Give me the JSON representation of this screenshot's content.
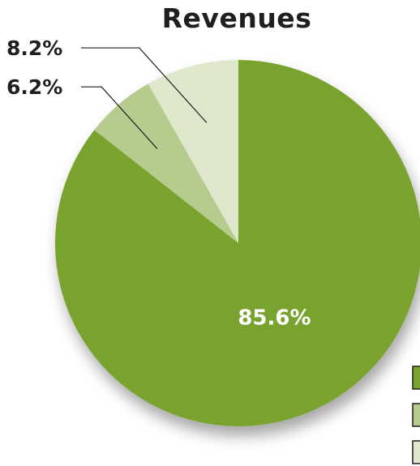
{
  "chart_data": {
    "type": "pie",
    "title": "Revenues",
    "start_angle_deg": 0,
    "direction": "clockwise",
    "slices": [
      {
        "label": "",
        "value": 85.6,
        "display": "85.6%",
        "color": "#7aa22f"
      },
      {
        "label": "",
        "value": 6.2,
        "display": "6.2%",
        "color": "#b5cc8e"
      },
      {
        "label": "",
        "value": 8.2,
        "display": "8.2%",
        "color": "#dfe8cd"
      }
    ],
    "legend": {
      "placement": "bottom-right, cropped at edge"
    },
    "colors": {
      "title": "#1f1f1f",
      "label_dark": "#1f1f1f",
      "label_light": "#ffffff",
      "leader": "#1f1f1f"
    }
  }
}
